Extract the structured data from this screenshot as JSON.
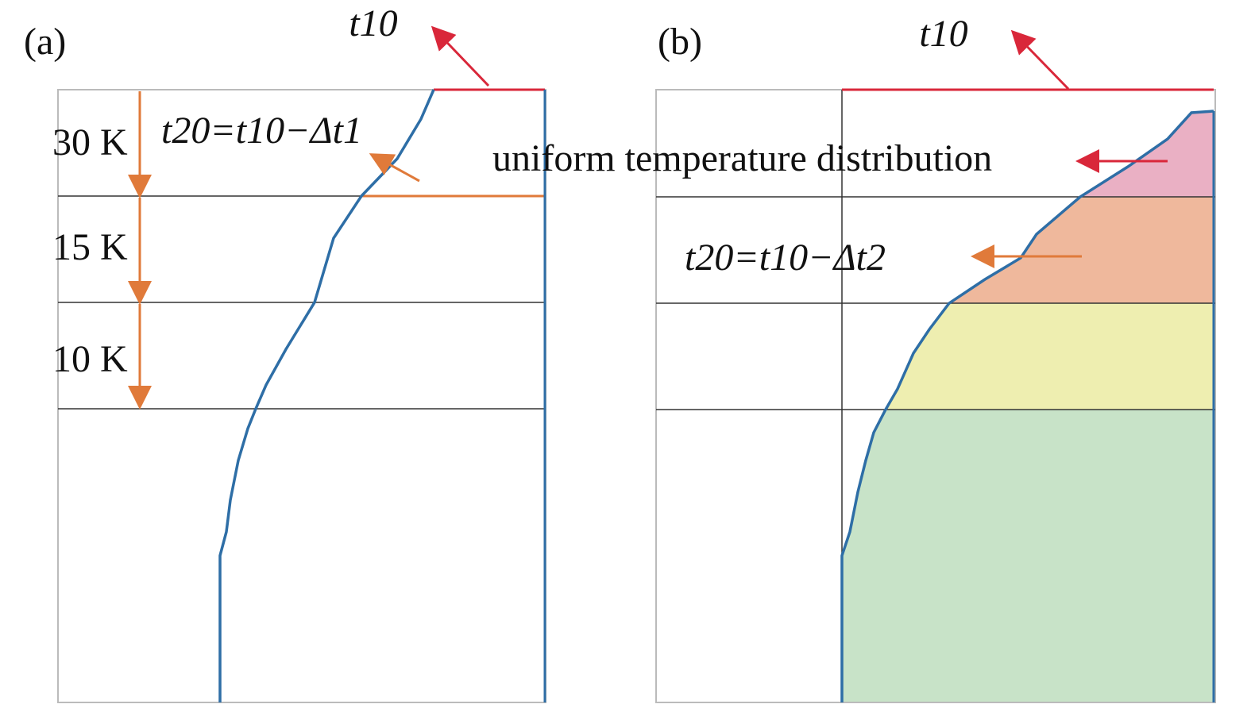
{
  "panel_a": {
    "label": "(a)",
    "top_label": "t10",
    "formula": "t20=t10−Δt1",
    "bands": [
      "30 K",
      "15 K",
      "10 K"
    ]
  },
  "panel_b": {
    "label": "(b)",
    "top_label": "t10",
    "formula": "t20=t10−Δt2",
    "annotation": "uniform temperature distribution"
  }
}
